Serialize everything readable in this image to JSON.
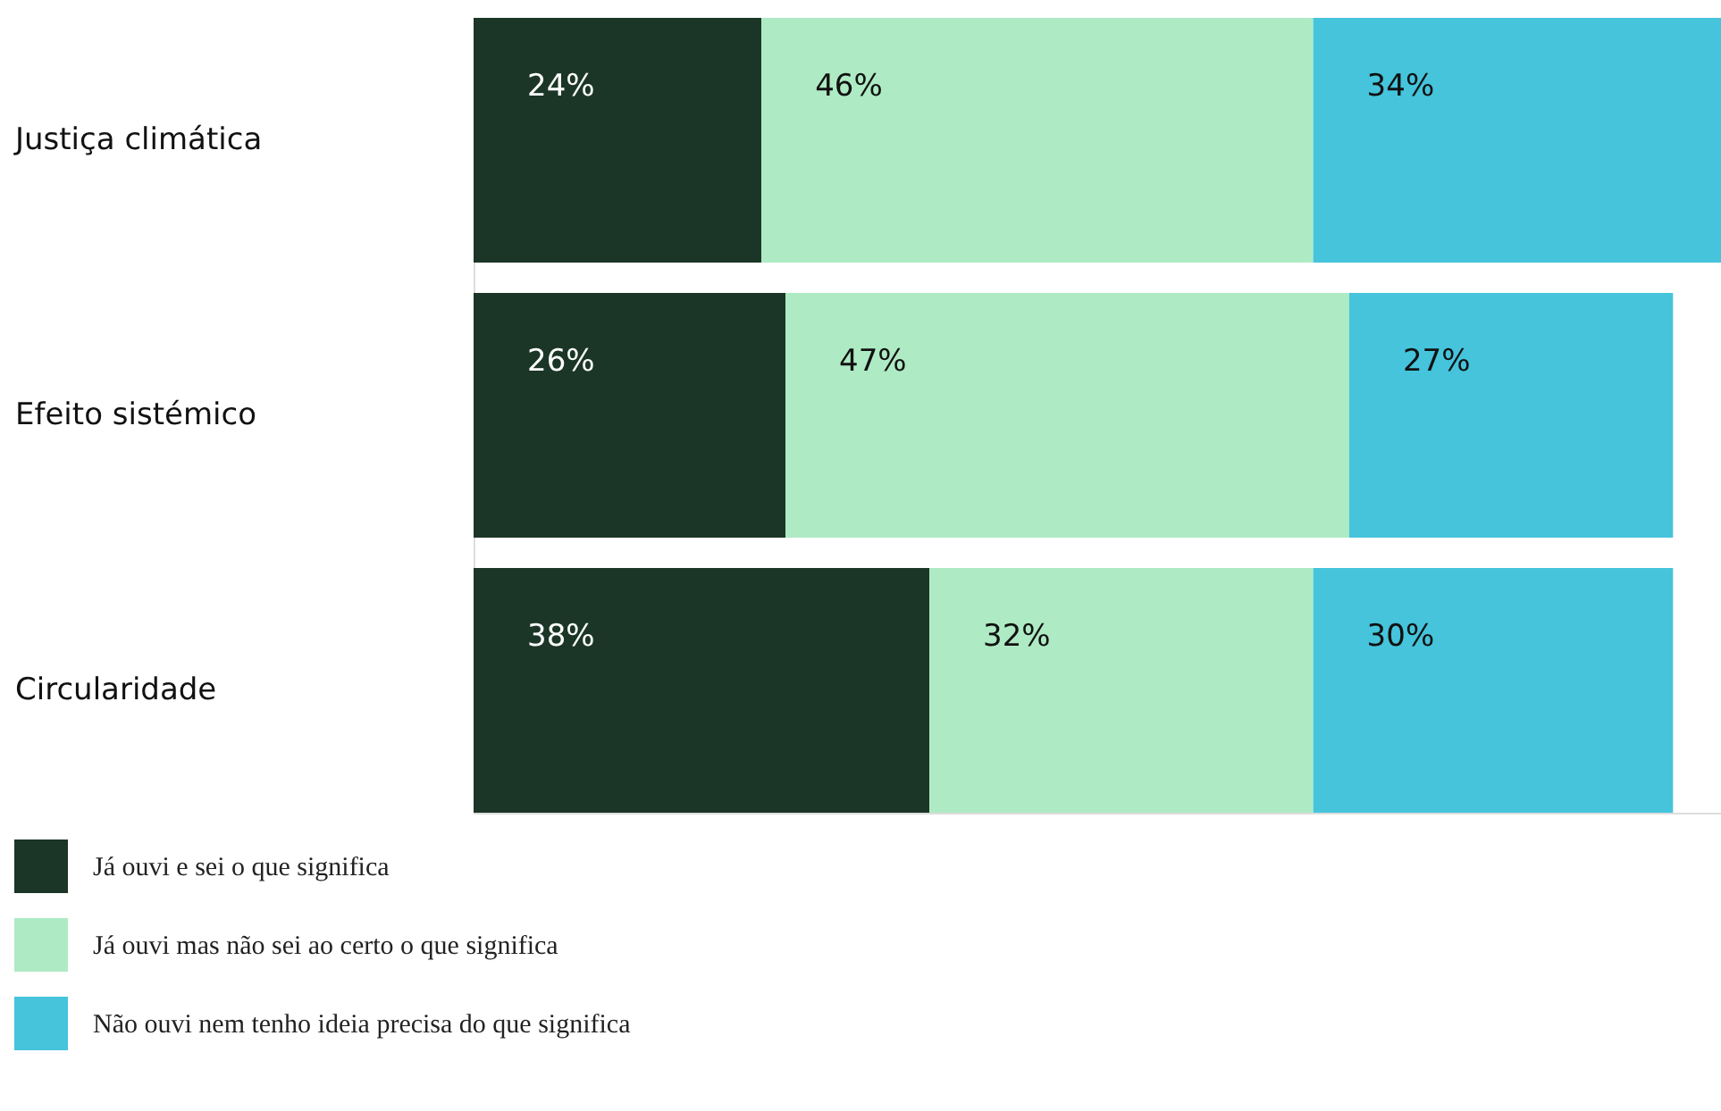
{
  "chart_data": {
    "type": "bar",
    "orientation": "horizontal",
    "stacked": true,
    "categories": [
      "Justiça climática",
      "Efeito sistémico",
      "Circularidade"
    ],
    "series": [
      {
        "name": "Já ouvi e sei o que significa",
        "color": "#1b3626",
        "values": [
          24,
          26,
          38
        ],
        "value_labels": [
          "24%",
          "26%",
          "38%"
        ]
      },
      {
        "name": "Já ouvi mas não sei ao certo o que significa",
        "color": "#aeebc4",
        "values": [
          46,
          47,
          32
        ],
        "value_labels": [
          "46%",
          "47%",
          "32%"
        ]
      },
      {
        "name": "Não ouvi nem tenho ideia precisa do que significa",
        "color": "#45c4dc",
        "values": [
          34,
          27,
          30
        ],
        "value_labels": [
          "34%",
          "27%",
          "30%"
        ]
      }
    ],
    "tick_labels": "y",
    "grid": false,
    "legend": "bottom left"
  }
}
